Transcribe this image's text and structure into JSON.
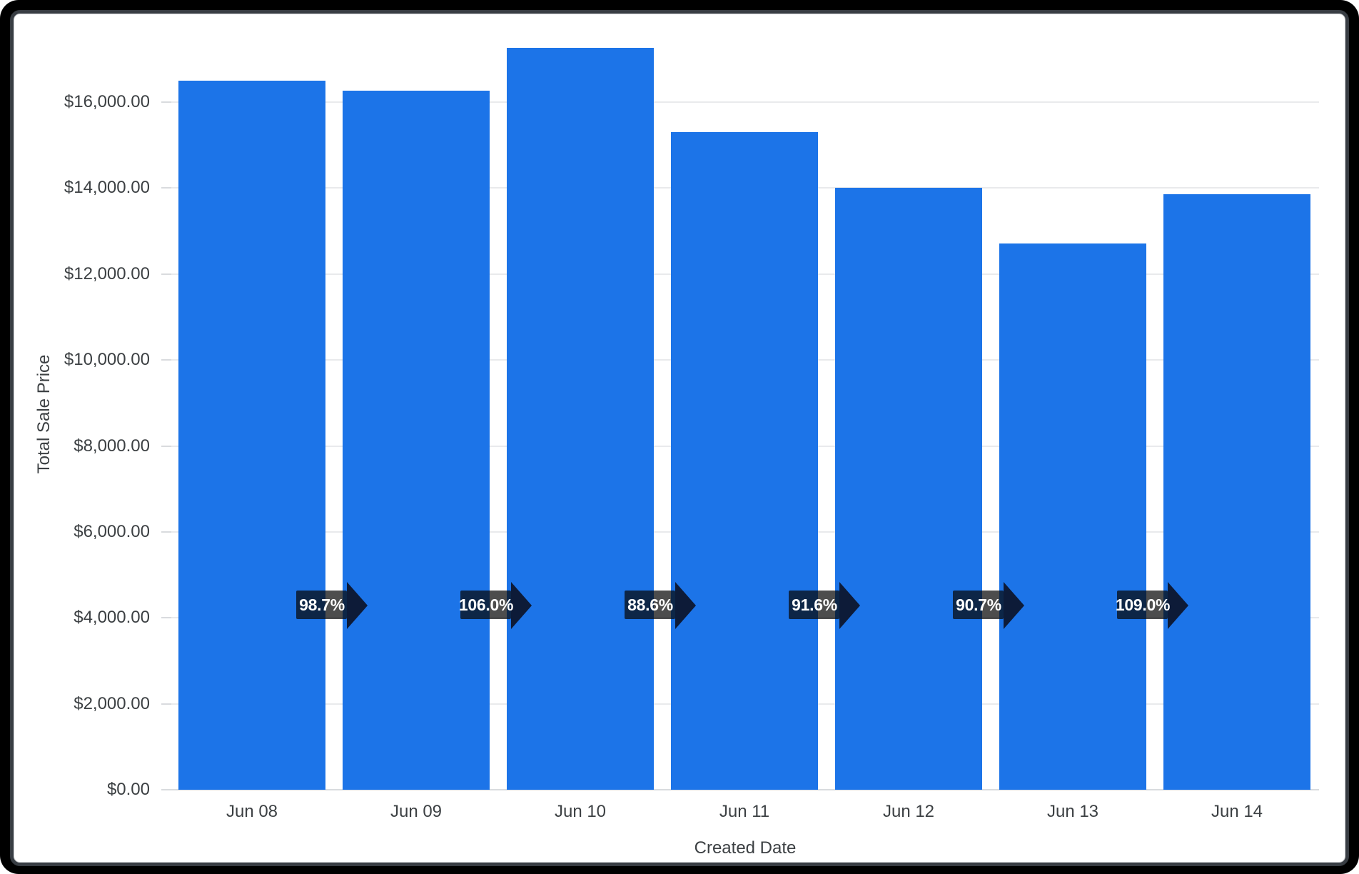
{
  "chart_data": {
    "type": "bar",
    "title": "",
    "xlabel": "Created Date",
    "ylabel": "Total Sale Price",
    "categories": [
      "Jun 08",
      "Jun 09",
      "Jun 10",
      "Jun 11",
      "Jun 12",
      "Jun 13",
      "Jun 14"
    ],
    "series": [
      {
        "name": "Total Sale Price",
        "values": [
          16495,
          16270,
          17260,
          15295,
          14010,
          12705,
          13850
        ]
      }
    ],
    "growth_vs_previous_labels": [
      "98.7%",
      "106.0%",
      "88.6%",
      "91.6%",
      "90.7%",
      "109.0%"
    ],
    "y_ticks": [
      {
        "value": 0,
        "label": "$0.00"
      },
      {
        "value": 2000,
        "label": "$2,000.00"
      },
      {
        "value": 4000,
        "label": "$4,000.00"
      },
      {
        "value": 6000,
        "label": "$6,000.00"
      },
      {
        "value": 8000,
        "label": "$8,000.00"
      },
      {
        "value": 10000,
        "label": "$10,000.00"
      },
      {
        "value": 12000,
        "label": "$12,000.00"
      },
      {
        "value": 14000,
        "label": "$14,000.00"
      },
      {
        "value": 16000,
        "label": "$16,000.00"
      }
    ],
    "ylim": [
      0,
      17450
    ],
    "grid": "horizontal",
    "legend": "none",
    "colors": {
      "bar": "#1c74e8",
      "gridline": "#e9eaec",
      "baseline": "#d9dbde",
      "tick_text": "#3c4043",
      "axis_title_text": "#3c4043",
      "arrow_head": "#0d1b38",
      "arrow_shaft": "rgba(8,8,8,0.72)",
      "badge_text": "#ffffff",
      "frame": "#000000",
      "card_border": "#383d43",
      "background": "#ffffff"
    }
  }
}
